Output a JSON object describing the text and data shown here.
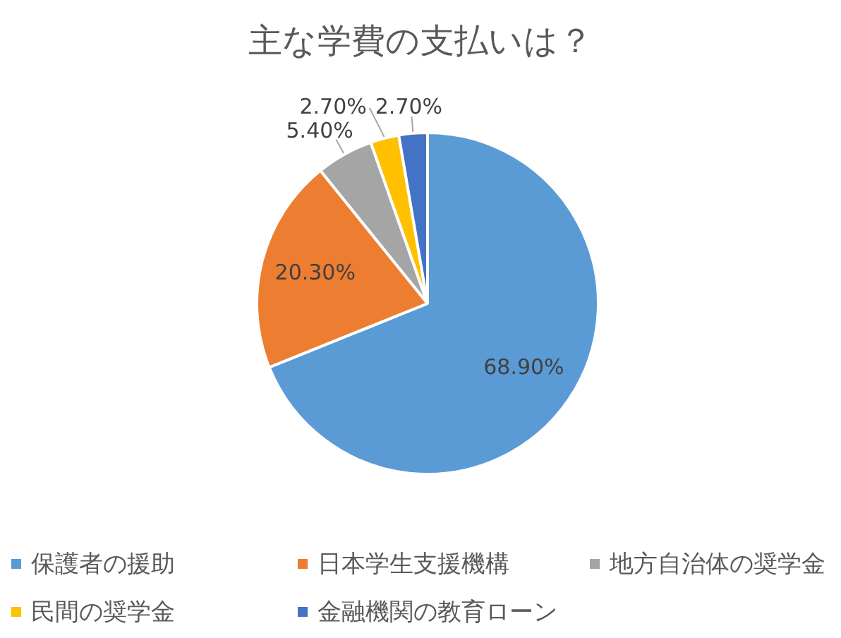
{
  "chart_data": {
    "type": "pie",
    "title": "主な学費の支払いは？",
    "categories": [
      "保護者の援助",
      "日本学生支援機構",
      "地方自治体の奨学金",
      "民間の奨学金",
      "金融機関の教育ローン"
    ],
    "values": [
      68.9,
      20.3,
      5.4,
      2.7,
      2.7
    ],
    "colors": [
      "#5b9bd5",
      "#ed7d31",
      "#a5a5a5",
      "#ffc000",
      "#4472c4"
    ],
    "value_labels": [
      "68.90%",
      "20.30%",
      "5.40%",
      "2.70%",
      "2.70%"
    ],
    "legend": "bottom"
  }
}
